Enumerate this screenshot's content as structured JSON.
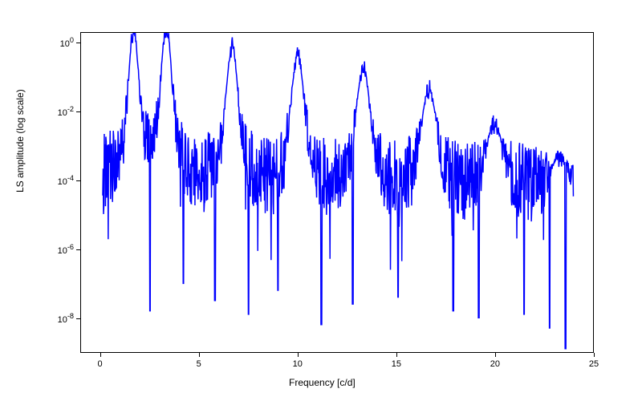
{
  "chart": {
    "type": "line",
    "xlabel": "Frequency [c/d]",
    "ylabel": "LS amplitude (log scale)",
    "xlim": [
      -1,
      25
    ],
    "ylim_log10": [
      -9,
      0.3
    ],
    "xticks": [
      0,
      5,
      10,
      15,
      20,
      25
    ],
    "yticks_exp": [
      -8,
      -6,
      -4,
      -2,
      0
    ],
    "line_color": "#0000ff",
    "line_width": 1.5,
    "background_color": "#ffffff",
    "border_color": "#000000",
    "label_fontsize": 12,
    "tick_fontsize": 11,
    "peaks_freq": [
      1.67,
      3.33,
      6.67,
      10.0,
      13.33,
      16.67,
      20.0,
      23.3
    ],
    "peaks_log10": [
      -0.5,
      -0.4,
      -0.9,
      -1.1,
      -1.4,
      -1.9,
      -2.7,
      -3.5
    ],
    "baseline_log10": -4.0,
    "noise_floor_min_log10": -7.0,
    "noise_span_log10": 2.5,
    "data_xmin": 0.1,
    "data_xmax": 24.0,
    "n_points": 1200,
    "seed": 42,
    "deep_dip_freqs": [
      2.5,
      4.2,
      5.8,
      7.5,
      9.0,
      11.2,
      12.8,
      15.1,
      17.9,
      19.2,
      21.5,
      22.8,
      23.6
    ],
    "deep_dip_log10": [
      -7.8,
      -7.0,
      -7.5,
      -7.9,
      -7.2,
      -8.2,
      -7.6,
      -7.4,
      -7.8,
      -8.0,
      -7.9,
      -8.3,
      -8.9
    ]
  }
}
